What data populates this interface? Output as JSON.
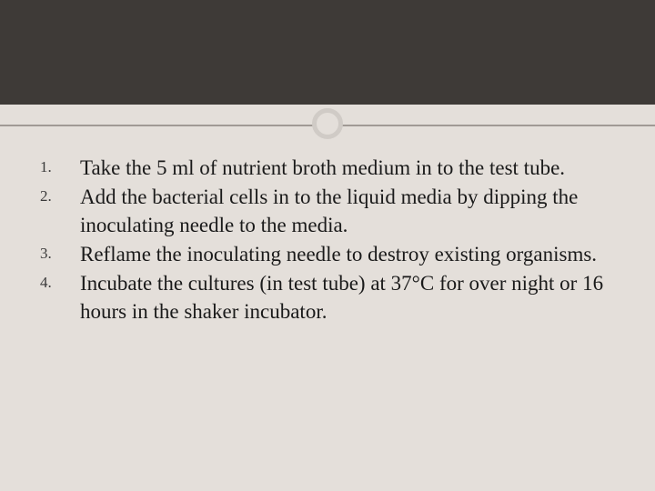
{
  "slide": {
    "background_color": "#e4dfda",
    "top_band_color": "#3e3a37",
    "divider_color": "#a09a95",
    "circle_border_color": "#d0cbc6",
    "text_color": "#1a1a1a",
    "body_fontsize": 23,
    "number_fontsize": 17,
    "items": [
      "Take the 5 ml of nutrient broth medium in to the test tube.",
      "Add the bacterial cells in to the liquid media by dipping the inoculating needle to the media.",
      "Reflame the inoculating needle to destroy existing organisms.",
      "Incubate the cultures (in test tube) at 37°C for over night or 16 hours in the shaker incubator."
    ]
  }
}
